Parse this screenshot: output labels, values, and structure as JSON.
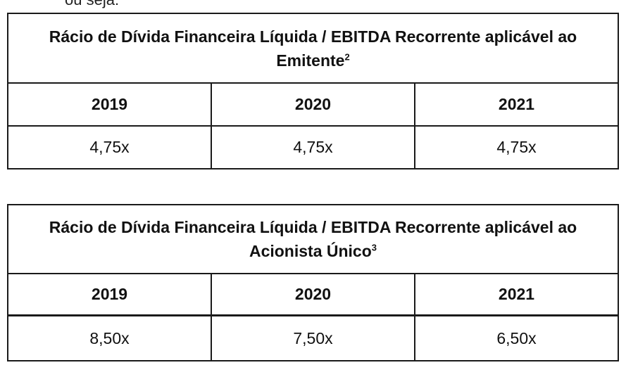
{
  "header_fragment": "ou seja:",
  "tables": [
    {
      "title_main": "Rácio de Dívida Financeira Líquida / EBITDA Recorrente aplicável ao",
      "title_line2": "Emitente",
      "title_sup": "2",
      "years": [
        "2019",
        "2020",
        "2021"
      ],
      "values": [
        "4,75x",
        "4,75x",
        "4,75x"
      ]
    },
    {
      "title_main": "Rácio de Dívida Financeira Líquida / EBITDA Recorrente aplicável ao",
      "title_line2": "Acionista Único",
      "title_sup": "3",
      "years": [
        "2019",
        "2020",
        "2021"
      ],
      "values": [
        "8,50x",
        "7,50x",
        "6,50x"
      ]
    }
  ]
}
